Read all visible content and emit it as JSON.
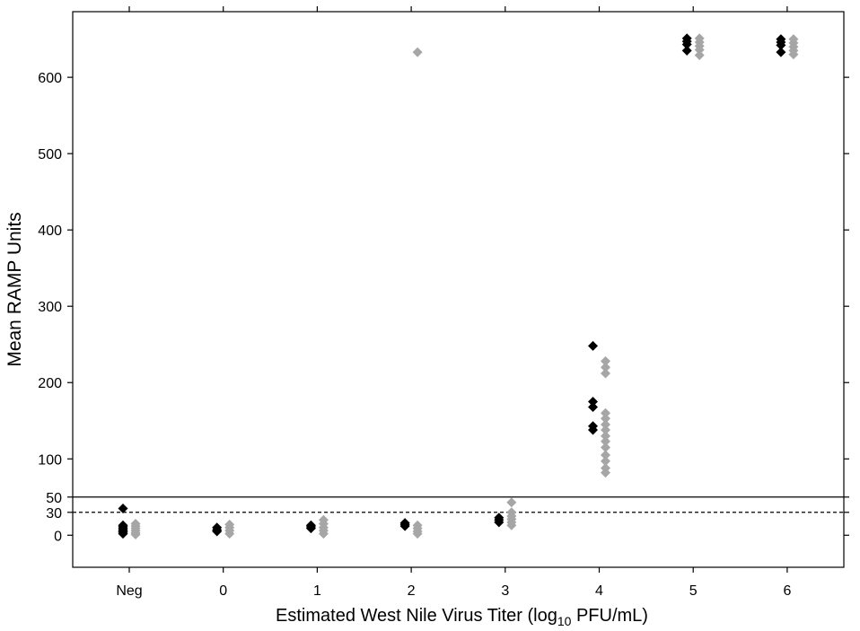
{
  "chart_data": {
    "type": "scatter",
    "xlabel_main": "Estimated West Nile Virus Titer (log",
    "xlabel_sub": "10",
    "xlabel_tail": " PFU/mL)",
    "ylabel": "Mean RAMP Units",
    "categories": [
      "Neg",
      "0",
      "1",
      "2",
      "3",
      "4",
      "5",
      "6"
    ],
    "yticks": [
      0,
      30,
      50,
      100,
      200,
      300,
      400,
      500,
      600
    ],
    "ylim": [
      -42,
      686
    ],
    "reference_lines": [
      {
        "value": 50,
        "style": "solid"
      },
      {
        "value": 30,
        "style": "dashed"
      }
    ],
    "series": [
      {
        "color": "#000000",
        "points": [
          {
            "x": "Neg",
            "y": 35
          },
          {
            "x": "Neg",
            "y": 13
          },
          {
            "x": "Neg",
            "y": 11
          },
          {
            "x": "Neg",
            "y": 9
          },
          {
            "x": "Neg",
            "y": 7
          },
          {
            "x": "Neg",
            "y": 5
          },
          {
            "x": "Neg",
            "y": 4
          },
          {
            "x": "Neg",
            "y": 2
          },
          {
            "x": "0",
            "y": 10
          },
          {
            "x": "0",
            "y": 7
          },
          {
            "x": "0",
            "y": 5
          },
          {
            "x": "1",
            "y": 13
          },
          {
            "x": "1",
            "y": 11
          },
          {
            "x": "1",
            "y": 9
          },
          {
            "x": "2",
            "y": 16
          },
          {
            "x": "2",
            "y": 14
          },
          {
            "x": "2",
            "y": 12
          },
          {
            "x": "3",
            "y": 23
          },
          {
            "x": "3",
            "y": 20
          },
          {
            "x": "3",
            "y": 17
          },
          {
            "x": "4",
            "y": 248
          },
          {
            "x": "4",
            "y": 175
          },
          {
            "x": "4",
            "y": 168
          },
          {
            "x": "4",
            "y": 143
          },
          {
            "x": "4",
            "y": 138
          },
          {
            "x": "5",
            "y": 651
          },
          {
            "x": "5",
            "y": 647
          },
          {
            "x": "5",
            "y": 643
          },
          {
            "x": "5",
            "y": 635
          },
          {
            "x": "6",
            "y": 650
          },
          {
            "x": "6",
            "y": 646
          },
          {
            "x": "6",
            "y": 642
          },
          {
            "x": "6",
            "y": 633
          }
        ]
      },
      {
        "color": "#a6a6a6",
        "points": [
          {
            "x": "Neg",
            "y": 15
          },
          {
            "x": "Neg",
            "y": 12
          },
          {
            "x": "Neg",
            "y": 9
          },
          {
            "x": "Neg",
            "y": 6
          },
          {
            "x": "Neg",
            "y": 3
          },
          {
            "x": "Neg",
            "y": 1
          },
          {
            "x": "0",
            "y": 14
          },
          {
            "x": "0",
            "y": 10
          },
          {
            "x": "0",
            "y": 6
          },
          {
            "x": "0",
            "y": 2
          },
          {
            "x": "1",
            "y": 20
          },
          {
            "x": "1",
            "y": 15
          },
          {
            "x": "1",
            "y": 10
          },
          {
            "x": "1",
            "y": 6
          },
          {
            "x": "1",
            "y": 2
          },
          {
            "x": "2",
            "y": 633
          },
          {
            "x": "2",
            "y": 13
          },
          {
            "x": "2",
            "y": 9
          },
          {
            "x": "2",
            "y": 5
          },
          {
            "x": "2",
            "y": 2
          },
          {
            "x": "3",
            "y": 43
          },
          {
            "x": "3",
            "y": 30
          },
          {
            "x": "3",
            "y": 25
          },
          {
            "x": "3",
            "y": 21
          },
          {
            "x": "3",
            "y": 17
          },
          {
            "x": "3",
            "y": 13
          },
          {
            "x": "4",
            "y": 228
          },
          {
            "x": "4",
            "y": 220
          },
          {
            "x": "4",
            "y": 212
          },
          {
            "x": "4",
            "y": 160
          },
          {
            "x": "4",
            "y": 153
          },
          {
            "x": "4",
            "y": 145
          },
          {
            "x": "4",
            "y": 138
          },
          {
            "x": "4",
            "y": 130
          },
          {
            "x": "4",
            "y": 123
          },
          {
            "x": "4",
            "y": 115
          },
          {
            "x": "4",
            "y": 105
          },
          {
            "x": "4",
            "y": 97
          },
          {
            "x": "4",
            "y": 88
          },
          {
            "x": "4",
            "y": 82
          },
          {
            "x": "5",
            "y": 651
          },
          {
            "x": "5",
            "y": 646
          },
          {
            "x": "5",
            "y": 641
          },
          {
            "x": "5",
            "y": 636
          },
          {
            "x": "5",
            "y": 629
          },
          {
            "x": "6",
            "y": 650
          },
          {
            "x": "6",
            "y": 645
          },
          {
            "x": "6",
            "y": 640
          },
          {
            "x": "6",
            "y": 635
          },
          {
            "x": "6",
            "y": 630
          }
        ]
      }
    ]
  }
}
